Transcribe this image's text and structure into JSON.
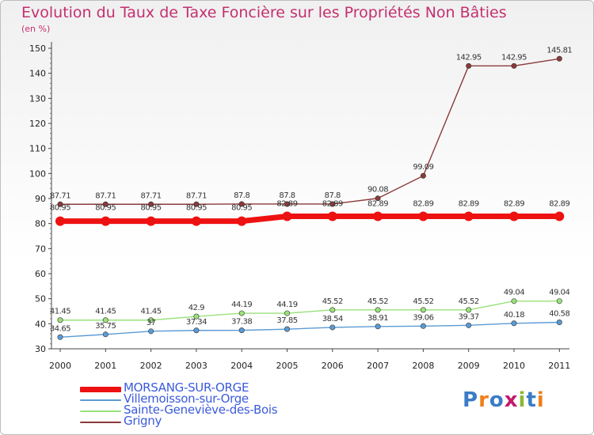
{
  "header": {
    "title": "Evolution du Taux de Taxe Foncière sur les Propriétés Non Bâties",
    "subtitle": "(en %)"
  },
  "brand": {
    "text": "Proxiti",
    "letters": [
      "P",
      "r",
      "o",
      "x",
      "i",
      "t",
      "i"
    ],
    "colors": [
      "#3a7cc6",
      "#f07f1a",
      "#3a7cc6",
      "#c11b6b",
      "#8cb835",
      "#3a7cc6",
      "#f07f1a"
    ]
  },
  "chart_data": {
    "type": "line",
    "title": "Evolution du Taux de Taxe Foncière sur les Propriétés Non Bâties",
    "ylabel": "(en %)",
    "categories": [
      "2000",
      "2001",
      "2002",
      "2003",
      "2004",
      "2005",
      "2006",
      "2007",
      "2008",
      "2009",
      "2010",
      "2011"
    ],
    "ylim": [
      30,
      150
    ],
    "yticks": [
      30,
      40,
      50,
      60,
      70,
      80,
      90,
      100,
      110,
      120,
      130,
      140,
      150
    ],
    "grid": false,
    "series": [
      {
        "name": "MORSANG-SUR-ORGE",
        "color": "#ee1111",
        "values": [
          80.95,
          80.95,
          80.95,
          80.95,
          80.95,
          82.89,
          82.89,
          82.89,
          82.89,
          82.89,
          82.89,
          82.89
        ],
        "labels": [
          "80.95",
          "80.95",
          "80.95",
          "80.95",
          "80.95",
          "82.89",
          "82.89",
          "82.89",
          "82.89",
          "82.89",
          "82.89",
          "82.89"
        ]
      },
      {
        "name": "Villemoisson-sur-Orge",
        "color": "#5b9bd5",
        "values": [
          34.65,
          35.75,
          37,
          37.34,
          37.38,
          37.85,
          38.54,
          38.91,
          39.06,
          39.37,
          40.18,
          40.58
        ],
        "labels": [
          "34.65",
          "35.75",
          "37",
          "37.34",
          "37.38",
          "37.85",
          "38.54",
          "38.91",
          "39.06",
          "39.37",
          "40.18",
          "40.58"
        ]
      },
      {
        "name": "Sainte-Geneviève-des-Bois",
        "color": "#99e27a",
        "values": [
          41.45,
          41.45,
          41.45,
          42.9,
          44.19,
          44.19,
          45.52,
          45.52,
          45.52,
          45.52,
          49.04,
          49.04
        ],
        "labels": [
          "41.45",
          "41.45",
          "41.45",
          "42.9",
          "44.19",
          "44.19",
          "45.52",
          "45.52",
          "45.52",
          "45.52",
          "49.04",
          "49.04"
        ]
      },
      {
        "name": "Grigny",
        "color": "#8b3a3a",
        "values": [
          87.71,
          87.71,
          87.71,
          87.71,
          87.8,
          87.8,
          87.8,
          90.08,
          99.09,
          142.95,
          142.95,
          145.81
        ],
        "labels": [
          "87.71",
          "87.71",
          "87.71",
          "87.71",
          "87.8",
          "87.8",
          "87.8",
          "90.08",
          "99.09",
          "142.95",
          "142.95",
          "145.81"
        ]
      }
    ]
  }
}
